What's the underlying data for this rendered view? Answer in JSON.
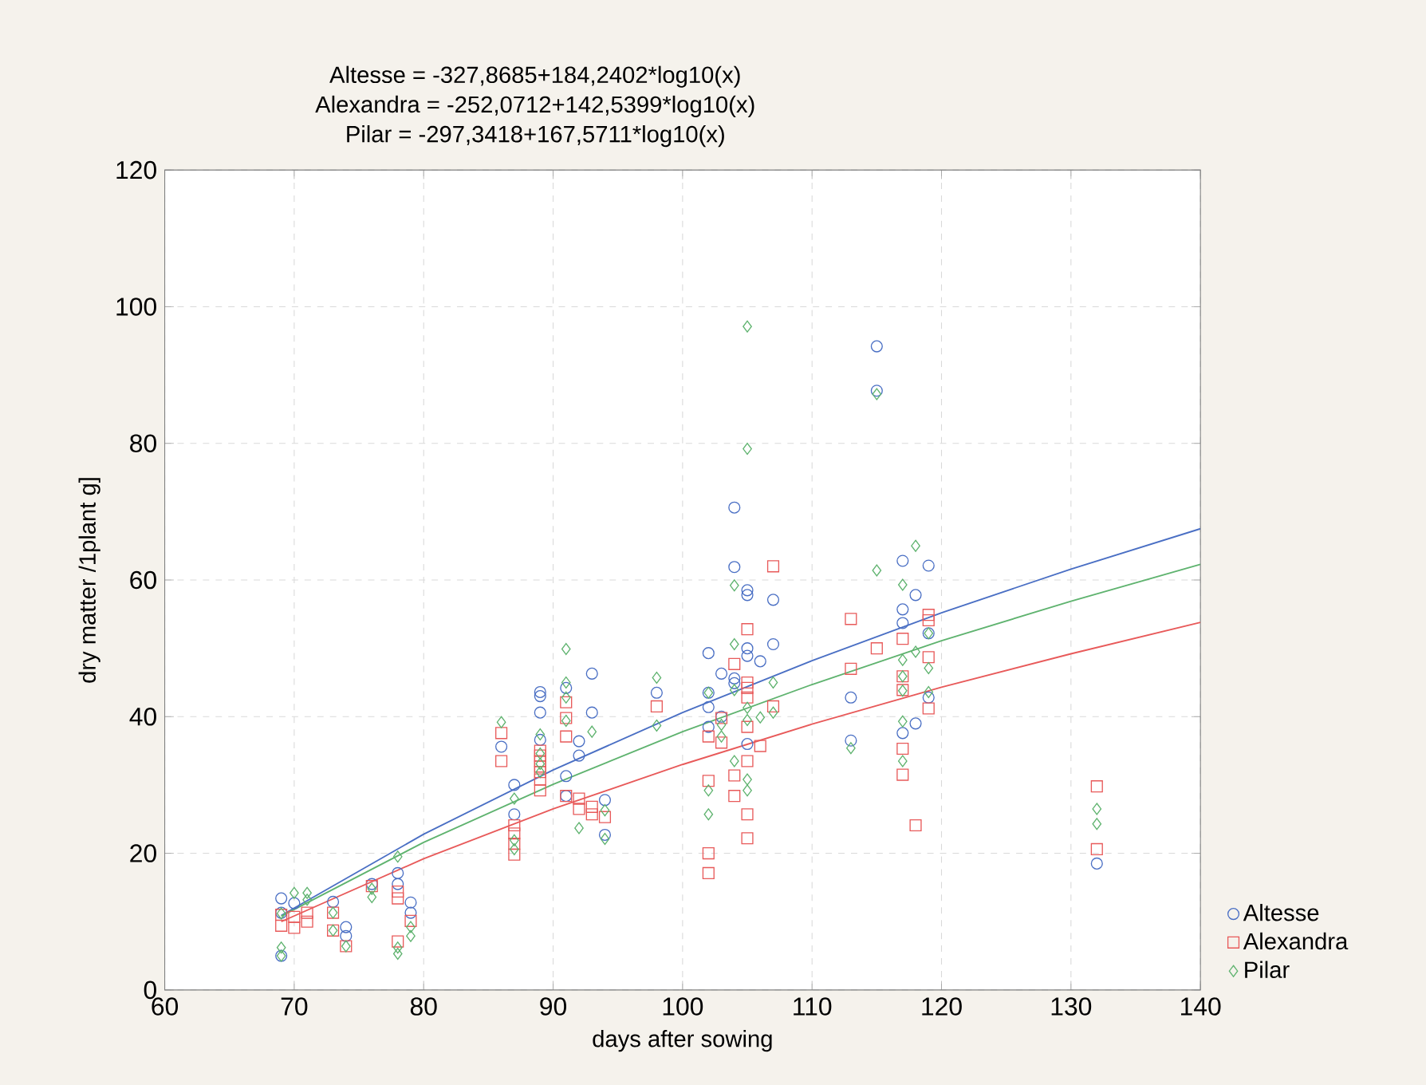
{
  "chart_data": {
    "type": "scatter",
    "annotations": [
      "Altesse = -327,8685+184,2402*log10(x)",
      "Alexandra = -252,0712+142,5399*log10(x)",
      "Pilar = -297,3418+167,5711*log10(x)"
    ],
    "xlabel": "days after sowing",
    "ylabel": "dry matter  /1plant  g]",
    "xlim": [
      60,
      140
    ],
    "ylim": [
      0,
      120
    ],
    "xticks": [
      60,
      70,
      80,
      90,
      100,
      110,
      120,
      130,
      140
    ],
    "yticks": [
      0,
      20,
      40,
      60,
      80,
      100,
      120
    ],
    "grid": true,
    "legend": "bottom right",
    "series": [
      {
        "name": "Altesse",
        "color": "#4a6fc4",
        "marker": "circle",
        "x": [
          69,
          69,
          69,
          70,
          73,
          74,
          74,
          76,
          78,
          78,
          79,
          79,
          86,
          87,
          87,
          89,
          89,
          89,
          89,
          91,
          91,
          91,
          92,
          92,
          93,
          93,
          94,
          94,
          98,
          102,
          102,
          102,
          102,
          103,
          103,
          104,
          104,
          104,
          104,
          105,
          105,
          105,
          105,
          105,
          106,
          107,
          107,
          113,
          113,
          115,
          115,
          117,
          117,
          117,
          117,
          118,
          118,
          119,
          119,
          119,
          132
        ],
        "values": [
          13.4,
          11.3,
          5.0,
          12.7,
          12.9,
          9.2,
          7.9,
          15.5,
          17.1,
          15.5,
          12.8,
          11.3,
          35.6,
          30.0,
          25.7,
          43.6,
          43.0,
          40.6,
          36.6,
          44.2,
          31.3,
          28.4,
          36.4,
          34.3,
          46.3,
          40.6,
          27.8,
          22.7,
          43.5,
          49.3,
          43.5,
          41.4,
          38.5,
          46.3,
          40.0,
          70.6,
          61.9,
          45.6,
          44.9,
          58.5,
          57.8,
          50.0,
          48.9,
          36.0,
          48.1,
          57.1,
          50.6,
          42.8,
          36.5,
          94.2,
          87.7,
          62.8,
          55.7,
          53.7,
          37.6,
          57.8,
          39.0,
          62.1,
          52.2,
          42.8,
          18.5
        ]
      },
      {
        "name": "Alexandra",
        "color": "#e85a5a",
        "marker": "square",
        "x": [
          69,
          69,
          70,
          70,
          71,
          71,
          73,
          73,
          74,
          76,
          78,
          78,
          78,
          79,
          86,
          86,
          87,
          87,
          87,
          87,
          89,
          89,
          89,
          89,
          89,
          89,
          89,
          91,
          91,
          91,
          91,
          92,
          92,
          93,
          93,
          94,
          98,
          102,
          102,
          102,
          102,
          103,
          103,
          104,
          104,
          104,
          105,
          105,
          105,
          105,
          105,
          105,
          105,
          105,
          106,
          107,
          107,
          113,
          113,
          115,
          117,
          117,
          117,
          117,
          117,
          118,
          119,
          119,
          119,
          119,
          132,
          132
        ],
        "values": [
          11.0,
          9.4,
          10.7,
          9.1,
          11.3,
          10.0,
          11.3,
          8.7,
          6.4,
          15.2,
          14.4,
          13.4,
          7.1,
          10.1,
          37.6,
          33.5,
          24.1,
          22.9,
          21.4,
          19.8,
          35.0,
          34.3,
          33.5,
          32.7,
          31.9,
          30.8,
          29.2,
          42.1,
          39.8,
          37.1,
          28.4,
          28.0,
          26.5,
          26.8,
          25.7,
          25.3,
          41.5,
          37.1,
          30.6,
          20.0,
          17.1,
          39.8,
          36.2,
          47.7,
          31.4,
          28.4,
          52.8,
          45.0,
          44.2,
          42.8,
          38.5,
          33.5,
          25.7,
          22.2,
          35.7,
          62.0,
          41.5,
          54.3,
          47.0,
          50.0,
          51.4,
          45.9,
          43.9,
          35.3,
          31.5,
          24.1,
          54.9,
          54.1,
          48.7,
          41.2,
          29.8,
          20.6
        ]
      },
      {
        "name": "Pilar",
        "color": "#5fb36f",
        "marker": "diamond",
        "x": [
          69,
          69,
          69,
          70,
          71,
          71,
          73,
          73,
          74,
          76,
          76,
          78,
          78,
          78,
          79,
          79,
          86,
          87,
          87,
          87,
          89,
          89,
          89,
          89,
          91,
          91,
          91,
          91,
          92,
          93,
          94,
          94,
          98,
          98,
          102,
          102,
          102,
          103,
          103,
          104,
          104,
          104,
          104,
          105,
          105,
          105,
          105,
          105,
          105,
          106,
          107,
          107,
          113,
          115,
          115,
          117,
          117,
          117,
          117,
          117,
          117,
          118,
          118,
          119,
          119,
          119,
          132,
          132
        ],
        "values": [
          11.2,
          6.2,
          5.0,
          14.2,
          14.2,
          13.2,
          11.3,
          8.7,
          6.4,
          14.8,
          13.6,
          19.5,
          6.2,
          5.3,
          9.2,
          7.9,
          39.2,
          28.0,
          21.9,
          20.6,
          37.4,
          34.6,
          33.1,
          31.9,
          49.9,
          45.0,
          42.8,
          39.4,
          23.7,
          37.8,
          26.3,
          22.1,
          45.7,
          38.7,
          43.5,
          29.2,
          25.7,
          38.8,
          37.1,
          59.2,
          50.6,
          43.9,
          33.5,
          97.1,
          79.2,
          41.3,
          39.5,
          30.8,
          29.2,
          39.9,
          45.0,
          40.6,
          35.4,
          87.2,
          61.4,
          59.3,
          48.3,
          45.9,
          43.8,
          39.3,
          33.5,
          65.0,
          49.5,
          52.2,
          47.1,
          43.6,
          26.5,
          24.3
        ]
      },
      {
        "type": "line",
        "color": "#4a6fc4",
        "marker": "none",
        "line_style": "solid",
        "x": [
          69,
          80,
          90,
          100,
          110,
          120,
          130,
          140
        ],
        "values": [
          10.9,
          22.8,
          32.2,
          40.6,
          48.2,
          55.2,
          61.6,
          67.5
        ]
      },
      {
        "type": "line",
        "color": "#e85a5a",
        "marker": "none",
        "line_style": "solid",
        "x": [
          69,
          80,
          90,
          100,
          110,
          120,
          130,
          140
        ],
        "values": [
          10.0,
          19.2,
          26.5,
          33.0,
          38.9,
          44.3,
          49.2,
          53.8
        ]
      },
      {
        "type": "line",
        "color": "#5fb36f",
        "marker": "none",
        "line_style": "solid",
        "x": [
          69,
          80,
          90,
          100,
          110,
          120,
          130,
          140
        ],
        "values": [
          10.8,
          21.6,
          30.1,
          37.8,
          44.7,
          51.1,
          56.9,
          62.3
        ]
      }
    ]
  }
}
